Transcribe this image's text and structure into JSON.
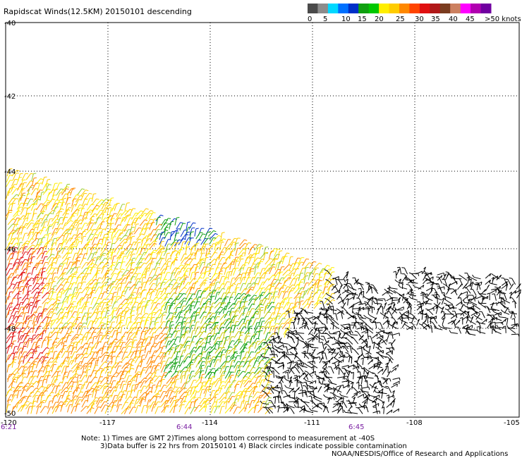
{
  "title": "Rapidscat Winds(12.5KM) 20150101 descending",
  "legend": {
    "colors": [
      "#4a4a4a",
      "#8c8c8c",
      "#00d8ff",
      "#0070ff",
      "#0030c8",
      "#10a010",
      "#00c800",
      "#ffee00",
      "#ffcc00",
      "#ff8800",
      "#ff4400",
      "#e01010",
      "#b01818",
      "#7a3c20",
      "#cc8060",
      "#ff00ff",
      "#b000b0",
      "#7000a0"
    ],
    "ticks": [
      "0",
      "5",
      "10",
      "15",
      "20",
      "25",
      "30",
      "35",
      "40",
      "45",
      ">50 knots"
    ]
  },
  "axes": {
    "lat_labels": [
      "-40",
      "-42",
      "-44",
      "-46",
      "-48",
      "-50"
    ],
    "lon_labels": [
      "-120",
      "-117",
      "-114",
      "-111",
      "-108",
      "-105"
    ],
    "time_labels": [
      "6:21",
      "6:44",
      "6:45"
    ]
  },
  "notes": {
    "line1": "Note: 1) Times are GMT 2)Times along bottom correspond to measurement at -40S",
    "line2": "3)Data buffer is 22 hrs from 20150101 4) Black circles indicate possible contamination",
    "line3": "NOAA/NESDIS/Office of Research and Applications"
  }
}
